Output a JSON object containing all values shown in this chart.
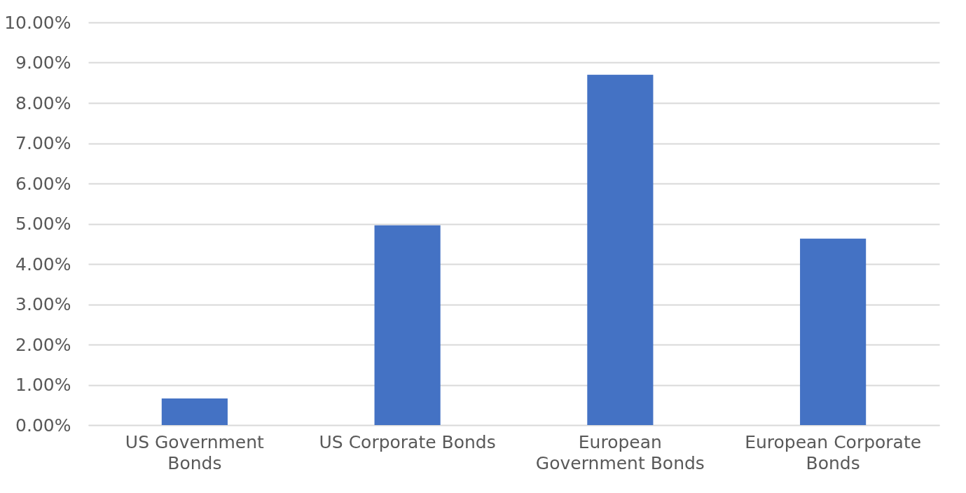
{
  "chart_data": {
    "type": "bar",
    "categories": [
      "US Government Bonds",
      "US Corporate Bonds",
      "European Government Bonds",
      "European Corporate Bonds"
    ],
    "values": [
      0.66,
      4.96,
      8.7,
      4.63
    ],
    "color": "#4472c4",
    "ylim": [
      0,
      10
    ],
    "yticks": [
      {
        "value": 0,
        "label": "0.00%"
      },
      {
        "value": 1,
        "label": "1.00%"
      },
      {
        "value": 2,
        "label": "2.00%"
      },
      {
        "value": 3,
        "label": "3.00%"
      },
      {
        "value": 4,
        "label": "4.00%"
      },
      {
        "value": 5,
        "label": "5.00%"
      },
      {
        "value": 6,
        "label": "6.00%"
      },
      {
        "value": 7,
        "label": "7.00%"
      },
      {
        "value": 8,
        "label": "8.00%"
      },
      {
        "value": 9,
        "label": "9.00%"
      },
      {
        "value": 10,
        "label": "10.00%"
      }
    ],
    "grid": true
  }
}
